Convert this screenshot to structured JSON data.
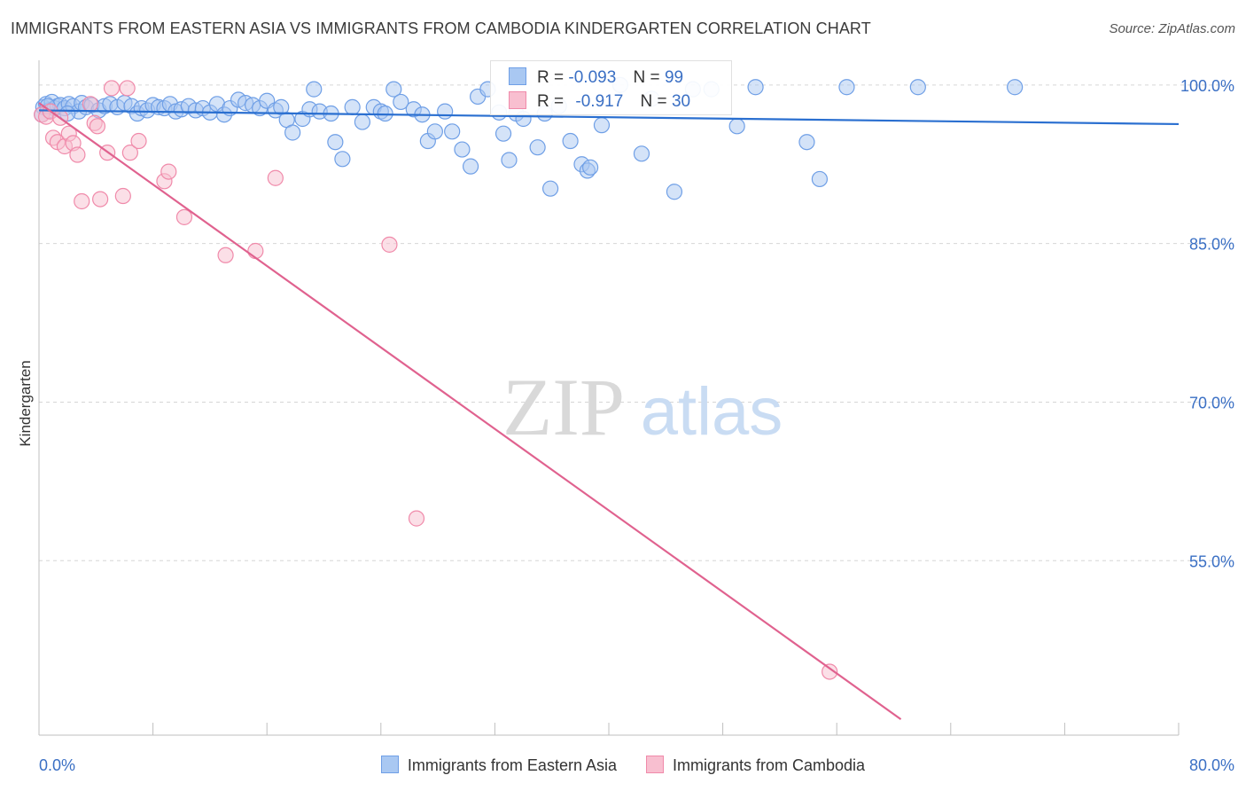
{
  "title": "IMMIGRANTS FROM EASTERN ASIA VS IMMIGRANTS FROM CAMBODIA KINDERGARTEN CORRELATION CHART",
  "source": "Source: ZipAtlas.com",
  "watermark": {
    "zip": "ZIP",
    "atlas": "atlas"
  },
  "legend_stats": [
    {
      "r_label": "R =",
      "r_value": "-0.093",
      "n_label": "N =",
      "n_value": "99"
    },
    {
      "r_label": "R =",
      "r_value": "-0.917",
      "n_label": "N =",
      "n_value": "30"
    }
  ],
  "chart_data": {
    "type": "scatter",
    "title": "IMMIGRANTS FROM EASTERN ASIA VS IMMIGRANTS FROM CAMBODIA KINDERGARTEN CORRELATION CHART",
    "xlabel": "",
    "ylabel": "Kindergarten",
    "xlim": [
      0,
      80
    ],
    "ylim": [
      38.5,
      102
    ],
    "x_tick_labels": [
      "0.0%",
      "80.0%"
    ],
    "y_ticks": [
      100,
      85,
      70,
      55
    ],
    "y_tick_labels": [
      "100.0%",
      "85.0%",
      "70.0%",
      "55.0%"
    ],
    "grid": true,
    "legend_position": "top-center",
    "series": [
      {
        "name": "Immigrants from Eastern Asia",
        "color": "#6f9fe6",
        "fill": "#a9c8f2",
        "trend": {
          "x": [
            0,
            80
          ],
          "y": [
            97.6,
            96.3
          ],
          "color": "#2a6fd0"
        },
        "points": [
          [
            0.3,
            97.9
          ],
          [
            0.5,
            98.2
          ],
          [
            0.7,
            97.6
          ],
          [
            0.9,
            98.4
          ],
          [
            1.1,
            97.8
          ],
          [
            1.3,
            98.0
          ],
          [
            1.5,
            98.1
          ],
          [
            1.8,
            97.8
          ],
          [
            2.1,
            98.2
          ],
          [
            2.4,
            98.0
          ],
          [
            2.8,
            97.5
          ],
          [
            3.0,
            98.3
          ],
          [
            3.3,
            97.9
          ],
          [
            3.7,
            98.1
          ],
          [
            4.2,
            97.6
          ],
          [
            4.6,
            98.0
          ],
          [
            5.0,
            98.2
          ],
          [
            5.5,
            97.9
          ],
          [
            6.0,
            98.3
          ],
          [
            6.5,
            98.0
          ],
          [
            6.9,
            97.3
          ],
          [
            7.2,
            97.8
          ],
          [
            7.6,
            97.6
          ],
          [
            8.0,
            98.1
          ],
          [
            8.4,
            97.9
          ],
          [
            8.8,
            97.8
          ],
          [
            9.2,
            98.2
          ],
          [
            9.6,
            97.5
          ],
          [
            10.0,
            97.7
          ],
          [
            10.5,
            98.0
          ],
          [
            11.0,
            97.6
          ],
          [
            11.5,
            97.8
          ],
          [
            12.0,
            97.4
          ],
          [
            12.5,
            98.2
          ],
          [
            13.0,
            97.2
          ],
          [
            13.4,
            97.8
          ],
          [
            14.0,
            98.6
          ],
          [
            14.5,
            98.3
          ],
          [
            15.0,
            98.1
          ],
          [
            15.5,
            97.8
          ],
          [
            16.0,
            98.5
          ],
          [
            16.6,
            97.6
          ],
          [
            17.0,
            97.9
          ],
          [
            17.4,
            96.7
          ],
          [
            17.8,
            95.5
          ],
          [
            18.5,
            96.8
          ],
          [
            19.0,
            97.7
          ],
          [
            19.3,
            99.6
          ],
          [
            19.7,
            97.5
          ],
          [
            20.5,
            97.3
          ],
          [
            20.8,
            94.6
          ],
          [
            21.3,
            93.0
          ],
          [
            22.0,
            97.9
          ],
          [
            22.7,
            96.5
          ],
          [
            23.5,
            97.9
          ],
          [
            24.0,
            97.5
          ],
          [
            24.3,
            97.3
          ],
          [
            24.9,
            99.6
          ],
          [
            25.4,
            98.4
          ],
          [
            26.3,
            97.7
          ],
          [
            26.9,
            97.2
          ],
          [
            27.3,
            94.7
          ],
          [
            27.8,
            95.6
          ],
          [
            28.5,
            97.5
          ],
          [
            29.0,
            95.6
          ],
          [
            29.7,
            93.9
          ],
          [
            30.3,
            92.3
          ],
          [
            30.8,
            98.9
          ],
          [
            31.5,
            99.6
          ],
          [
            32.3,
            97.4
          ],
          [
            32.6,
            95.4
          ],
          [
            33.0,
            92.9
          ],
          [
            33.5,
            97.3
          ],
          [
            34.0,
            96.8
          ],
          [
            35.0,
            94.1
          ],
          [
            35.5,
            97.3
          ],
          [
            35.9,
            90.2
          ],
          [
            36.5,
            98.0
          ],
          [
            37.3,
            94.7
          ],
          [
            38.1,
            92.5
          ],
          [
            38.5,
            91.9
          ],
          [
            38.7,
            92.2
          ],
          [
            39.5,
            96.2
          ],
          [
            40.8,
            100.0
          ],
          [
            42.3,
            93.5
          ],
          [
            43.0,
            98.7
          ],
          [
            44.6,
            89.9
          ],
          [
            45.9,
            99.6
          ],
          [
            47.2,
            99.6
          ],
          [
            49.0,
            96.1
          ],
          [
            50.3,
            99.8
          ],
          [
            53.9,
            94.6
          ],
          [
            54.8,
            91.1
          ],
          [
            56.7,
            99.8
          ],
          [
            61.7,
            99.8
          ],
          [
            68.5,
            99.8
          ],
          [
            0.2,
            97.2
          ],
          [
            2.0,
            97.3
          ],
          [
            0.6,
            98.0
          ]
        ]
      },
      {
        "name": "Immigrants from Cambodia",
        "color": "#f08aaa",
        "fill": "#f8bfd0",
        "trend": {
          "x": [
            0,
            60.5
          ],
          "y": [
            98.3,
            40.0
          ],
          "color": "#e0628f"
        },
        "points": [
          [
            0.2,
            97.2
          ],
          [
            0.5,
            97.0
          ],
          [
            0.8,
            97.5
          ],
          [
            1.0,
            95.0
          ],
          [
            1.3,
            94.6
          ],
          [
            1.5,
            96.9
          ],
          [
            1.8,
            94.2
          ],
          [
            2.1,
            95.4
          ],
          [
            2.4,
            94.5
          ],
          [
            2.7,
            93.4
          ],
          [
            3.0,
            89.0
          ],
          [
            3.6,
            98.2
          ],
          [
            3.9,
            96.4
          ],
          [
            4.1,
            96.1
          ],
          [
            4.3,
            89.2
          ],
          [
            4.8,
            93.6
          ],
          [
            5.1,
            99.7
          ],
          [
            5.9,
            89.5
          ],
          [
            6.2,
            99.7
          ],
          [
            6.4,
            93.6
          ],
          [
            7.0,
            94.7
          ],
          [
            8.8,
            90.9
          ],
          [
            9.1,
            91.8
          ],
          [
            10.2,
            87.5
          ],
          [
            13.1,
            83.9
          ],
          [
            15.2,
            84.3
          ],
          [
            16.6,
            91.2
          ],
          [
            24.6,
            84.9
          ],
          [
            26.5,
            59.0
          ],
          [
            55.5,
            44.5
          ]
        ]
      }
    ]
  },
  "bottom_legend": [
    {
      "label": "Immigrants from Eastern Asia"
    },
    {
      "label": "Immigrants from Cambodia"
    }
  ]
}
